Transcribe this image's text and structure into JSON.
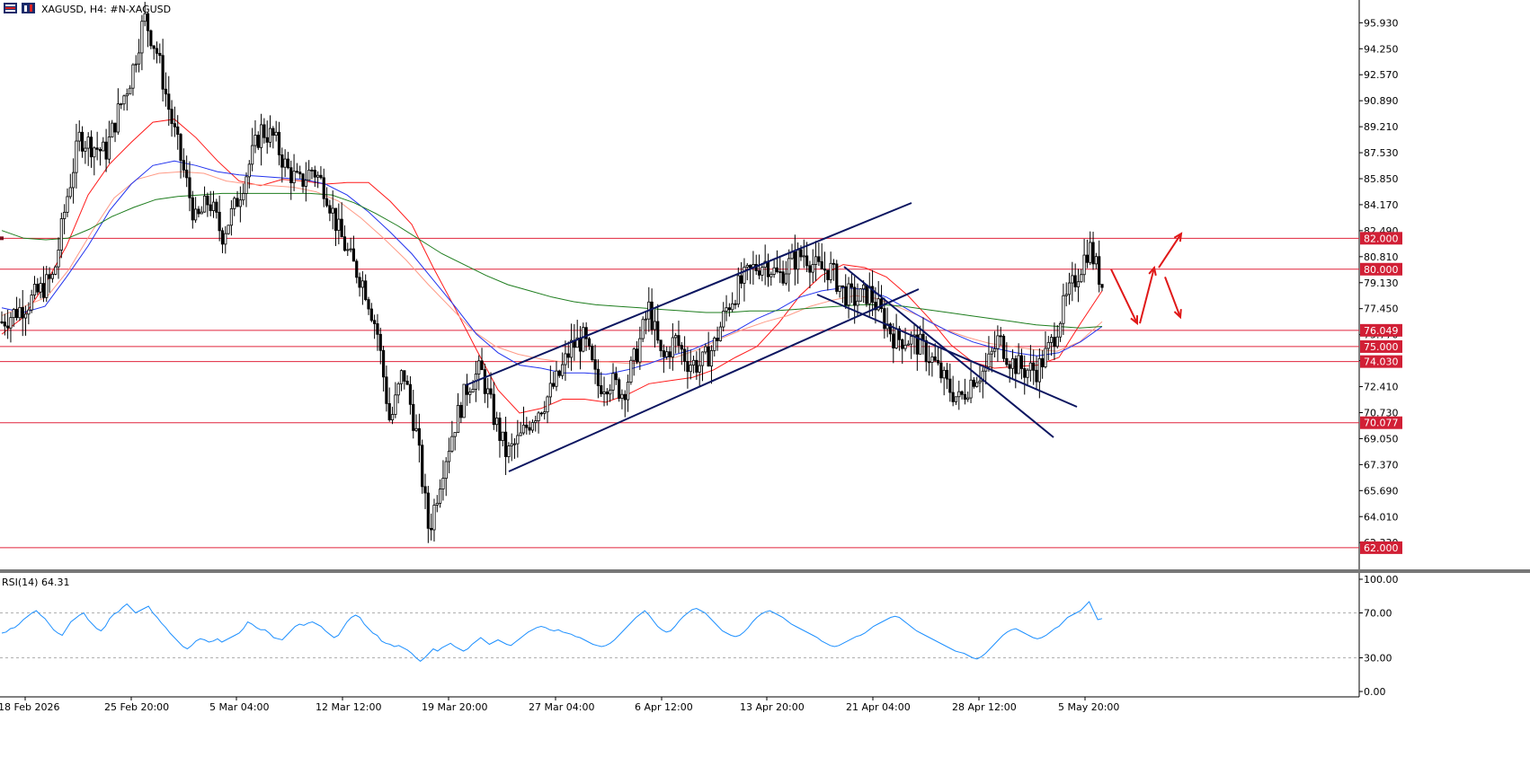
{
  "header": {
    "symbol_label": "XAGUSD, H4:  #N-XAGUSD"
  },
  "colors": {
    "level_line": "#e0243c",
    "level_tag": "#d11f35",
    "channel": "#0b1560",
    "ma_fast": "#ff1a1a",
    "ma_mid": "#ff9a86",
    "ma_blue": "#2233ee",
    "ma_slow": "#1e7d1e",
    "rsi_line": "#1e90ff",
    "arrows": "#e01818",
    "candle": "#000000"
  },
  "chart_data": [
    {
      "type": "candlestick",
      "symbol": "XAGUSD",
      "timeframe": "H4",
      "price_axis_ticks": [
        "95.930",
        "94.250",
        "92.570",
        "90.890",
        "89.210",
        "87.530",
        "85.850",
        "84.170",
        "82.490",
        "80.810",
        "79.130",
        "77.450",
        "75.770",
        "74.090",
        "72.410",
        "70.730",
        "69.050",
        "67.370",
        "65.690",
        "64.010",
        "62.330"
      ],
      "ylim": [
        60.6,
        97.4
      ],
      "time_axis_ticks": [
        "18 Feb 2026",
        "25 Feb 20:00",
        "5 Mar 04:00",
        "12 Mar 12:00",
        "19 Mar 20:00",
        "27 Mar 04:00",
        "6 Apr 12:00",
        "13 Apr 20:00",
        "21 Apr 04:00",
        "28 Apr 12:00",
        "5 May 20:00"
      ],
      "horizontal_levels": [
        "82.000",
        "80.000",
        "76.049",
        "75.000",
        "74.030",
        "70.077",
        "62.000"
      ],
      "price_path_approx": [
        [
          0,
          76.6
        ],
        [
          2,
          77.8
        ],
        [
          4,
          79.5
        ],
        [
          5,
          84.5
        ],
        [
          6,
          88.5
        ],
        [
          8,
          87.5
        ],
        [
          9,
          90.2
        ],
        [
          10,
          92.5
        ],
        [
          11,
          96.3
        ],
        [
          12,
          94.0
        ],
        [
          13,
          90.0
        ],
        [
          14,
          86.5
        ],
        [
          15,
          83.0
        ],
        [
          16,
          84.5
        ],
        [
          17,
          82.2
        ],
        [
          18,
          84.0
        ],
        [
          19,
          86.5
        ],
        [
          20,
          89.0
        ],
        [
          21,
          88.5
        ],
        [
          22,
          86.5
        ],
        [
          23,
          85.5
        ],
        [
          24,
          86.5
        ],
        [
          25,
          85.2
        ],
        [
          26,
          82.5
        ],
        [
          27,
          80.5
        ],
        [
          28,
          79.0
        ],
        [
          29,
          76.0
        ],
        [
          30,
          70.0
        ],
        [
          31,
          73.5
        ],
        [
          32,
          69.5
        ],
        [
          33,
          63.0
        ],
        [
          34,
          67.0
        ],
        [
          35,
          70.0
        ],
        [
          36,
          72.5
        ],
        [
          37,
          73.5
        ],
        [
          38,
          70.5
        ],
        [
          39,
          68.0
        ],
        [
          40,
          69.0
        ],
        [
          41,
          70.5
        ],
        [
          42,
          71.5
        ],
        [
          43,
          73.0
        ],
        [
          44,
          75.0
        ],
        [
          45,
          75.5
        ],
        [
          46,
          72.5
        ],
        [
          47,
          72.8
        ],
        [
          48,
          72.0
        ],
        [
          49,
          74.5
        ],
        [
          50,
          77.5
        ],
        [
          51,
          74.0
        ],
        [
          52,
          75.5
        ],
        [
          53,
          74.0
        ],
        [
          54,
          73.8
        ],
        [
          55,
          75.0
        ],
        [
          56,
          77.5
        ],
        [
          57,
          79.0
        ],
        [
          58,
          80.0
        ],
        [
          59,
          80.5
        ],
        [
          60,
          79.5
        ],
        [
          61,
          80.5
        ],
        [
          62,
          81.0
        ],
        [
          63,
          80.0
        ],
        [
          64,
          80.0
        ],
        [
          65,
          78.5
        ],
        [
          66,
          78.0
        ],
        [
          67,
          78.5
        ],
        [
          68,
          77.0
        ],
        [
          69,
          75.5
        ],
        [
          70,
          75.5
        ],
        [
          71,
          75.0
        ],
        [
          72,
          74.0
        ],
        [
          73,
          72.5
        ],
        [
          74,
          71.5
        ],
        [
          75,
          73.0
        ],
        [
          76,
          73.5
        ],
        [
          77,
          75.5
        ],
        [
          78,
          74.0
        ],
        [
          79,
          73.5
        ],
        [
          80,
          73.5
        ],
        [
          81,
          75.0
        ],
        [
          82,
          77.5
        ],
        [
          83,
          79.5
        ],
        [
          84,
          81.5
        ],
        [
          85,
          79.0
        ]
      ],
      "moving_averages": [
        {
          "color_key": "ma_fast",
          "values_approx": [
            75.8,
            76.9,
            79.0,
            81.5,
            84.8,
            86.8,
            88.2,
            89.5,
            89.7,
            88.5,
            87.0,
            85.7,
            85.4,
            85.8,
            85.7,
            85.5,
            85.6,
            85.6,
            84.4,
            82.9,
            80.1,
            77.5,
            74.8,
            72.2,
            70.7,
            71.0,
            71.6,
            71.6,
            71.4,
            71.9,
            72.6,
            72.8,
            73.0,
            73.5,
            74.3,
            75.0,
            76.5,
            78.3,
            79.6,
            80.3,
            80.1,
            79.5,
            78.3,
            76.8,
            75.1,
            74.0,
            73.6,
            73.7,
            73.8,
            74.3,
            76.5,
            78.6
          ]
        },
        {
          "color_key": "ma_mid",
          "values_approx": [
            77.0,
            77.6,
            78.2,
            80.0,
            82.4,
            84.6,
            85.8,
            86.2,
            86.3,
            86.2,
            85.7,
            85.5,
            85.4,
            85.3,
            85.0,
            84.4,
            83.3,
            82.0,
            80.6,
            79.0,
            77.5,
            76.0,
            75.0,
            74.5,
            74.2,
            74.0,
            74.0,
            74.0,
            73.9,
            74.0,
            74.3,
            74.8,
            75.5,
            76.1,
            76.6,
            77.0,
            77.6,
            78.0,
            78.3,
            78.1,
            77.5,
            76.9,
            76.1,
            75.6,
            75.2,
            75.0,
            74.8,
            74.7,
            75.3,
            76.6
          ]
        },
        {
          "color_key": "ma_blue",
          "values_approx": [
            77.5,
            77.2,
            77.6,
            79.5,
            81.5,
            83.8,
            85.5,
            86.7,
            87.0,
            86.7,
            86.3,
            86.1,
            86.0,
            85.9,
            85.8,
            85.5,
            84.8,
            83.7,
            82.4,
            81.0,
            79.3,
            77.6,
            75.8,
            74.6,
            73.8,
            73.6,
            73.3,
            73.3,
            73.2,
            73.5,
            73.9,
            74.4,
            74.8,
            75.4,
            76.0,
            76.8,
            77.4,
            78.2,
            78.6,
            78.8,
            78.7,
            78.2,
            77.4,
            76.6,
            75.9,
            75.3,
            74.9,
            74.6,
            74.4,
            74.6,
            75.3,
            76.3
          ]
        },
        {
          "color_key": "ma_slow",
          "values_approx": [
            82.5,
            82.0,
            81.9,
            82.0,
            82.6,
            83.4,
            84.0,
            84.5,
            84.7,
            84.8,
            84.9,
            84.9,
            84.9,
            84.9,
            84.9,
            84.8,
            84.3,
            83.6,
            82.8,
            81.9,
            81.0,
            80.3,
            79.6,
            79.0,
            78.6,
            78.2,
            77.9,
            77.7,
            77.6,
            77.5,
            77.4,
            77.3,
            77.2,
            77.2,
            77.3,
            77.3,
            77.4,
            77.5,
            77.6,
            77.7,
            77.7,
            77.6,
            77.4,
            77.2,
            77.0,
            76.8,
            76.6,
            76.4,
            76.3,
            76.2,
            76.3
          ]
        }
      ],
      "channels": [
        {
          "name": "rising channel"
        },
        {
          "name": "falling channel"
        }
      ],
      "projection_arrows": [
        {
          "from": 80.0,
          "to": 76.5
        },
        {
          "from": 76.5,
          "to": 80.1
        },
        {
          "from": 80.1,
          "to": 82.3
        },
        {
          "from": 79.5,
          "to": 76.9
        }
      ]
    },
    {
      "type": "line",
      "indicator_label": "RSI(14) 64.31",
      "y_axis_ticks": [
        "100.00",
        "70.00",
        "30.00",
        "0.00"
      ],
      "ylim": [
        0,
        100
      ],
      "levels": [
        70,
        30
      ],
      "values_approx": [
        52,
        53,
        56,
        57,
        60,
        64,
        67,
        70,
        72,
        68,
        65,
        60,
        55,
        52,
        50,
        56,
        62,
        65,
        68,
        70,
        64,
        60,
        56,
        54,
        58,
        65,
        69,
        71,
        75,
        78,
        74,
        70,
        72,
        74,
        76,
        70,
        66,
        61,
        57,
        52,
        48,
        44,
        40,
        38,
        41,
        45,
        47,
        46,
        44,
        45,
        47,
        44,
        46,
        48,
        50,
        52,
        56,
        62,
        60,
        57,
        55,
        55,
        52,
        48,
        47,
        46,
        50,
        54,
        58,
        60,
        59,
        61,
        62,
        60,
        58,
        54,
        51,
        48,
        50,
        56,
        62,
        66,
        68,
        66,
        60,
        56,
        52,
        50,
        45,
        43,
        42,
        40,
        41,
        39,
        37,
        34,
        30,
        27,
        30,
        34,
        38,
        36,
        39,
        41,
        43,
        40,
        38,
        36,
        38,
        42,
        45,
        48,
        45,
        42,
        44,
        46,
        44,
        42,
        41,
        44,
        47,
        50,
        53,
        55,
        57,
        58,
        57,
        55,
        54,
        55,
        53,
        52,
        51,
        49,
        48,
        46,
        44,
        42,
        41,
        40,
        41,
        43,
        46,
        50,
        54,
        58,
        62,
        66,
        69,
        72,
        68,
        63,
        58,
        55,
        53,
        54,
        58,
        63,
        67,
        70,
        73,
        74,
        72,
        70,
        66,
        62,
        58,
        54,
        52,
        50,
        49,
        50,
        53,
        57,
        62,
        66,
        69,
        71,
        72,
        70,
        68,
        66,
        63,
        60,
        58,
        56,
        54,
        52,
        50,
        48,
        45,
        43,
        41,
        40,
        41,
        43,
        45,
        47,
        49,
        50,
        52,
        55,
        58,
        60,
        62,
        64,
        66,
        67,
        66,
        63,
        60,
        57,
        54,
        52,
        50,
        48,
        46,
        44,
        42,
        40,
        38,
        36,
        35,
        34,
        32,
        30,
        29,
        31,
        34,
        38,
        42,
        46,
        50,
        53,
        55,
        56,
        54,
        52,
        50,
        48,
        47,
        48,
        50,
        53,
        56,
        58,
        62,
        66,
        68,
        70,
        72,
        76,
        80,
        72,
        64,
        65
      ]
    }
  ]
}
